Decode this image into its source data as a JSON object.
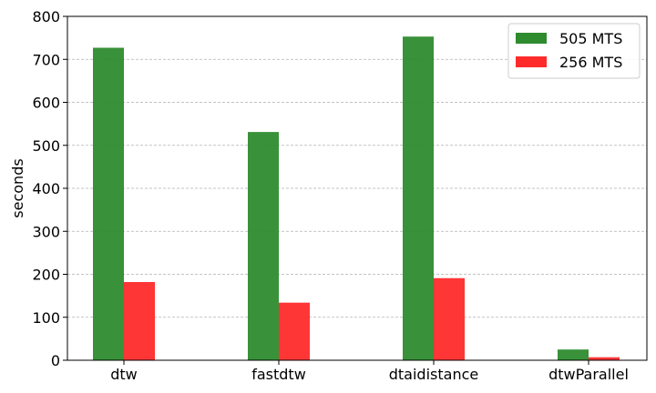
{
  "chart_data": {
    "type": "bar",
    "categories": [
      "dtw",
      "fastdtw",
      "dtaidistance",
      "dtwParallel"
    ],
    "series": [
      {
        "name": "505 MTS",
        "color": "#2e8b2e",
        "values": [
          727,
          531,
          753,
          25
        ]
      },
      {
        "name": "256 MTS",
        "color": "#ff2b2b",
        "values": [
          182,
          134,
          191,
          7
        ]
      }
    ],
    "title": "",
    "xlabel": "",
    "ylabel": "seconds",
    "ylim": [
      0,
      800
    ],
    "yticks": [
      0,
      100,
      200,
      300,
      400,
      500,
      600,
      700,
      800
    ],
    "grid": "y-dashed",
    "legend_position": "top-right"
  }
}
